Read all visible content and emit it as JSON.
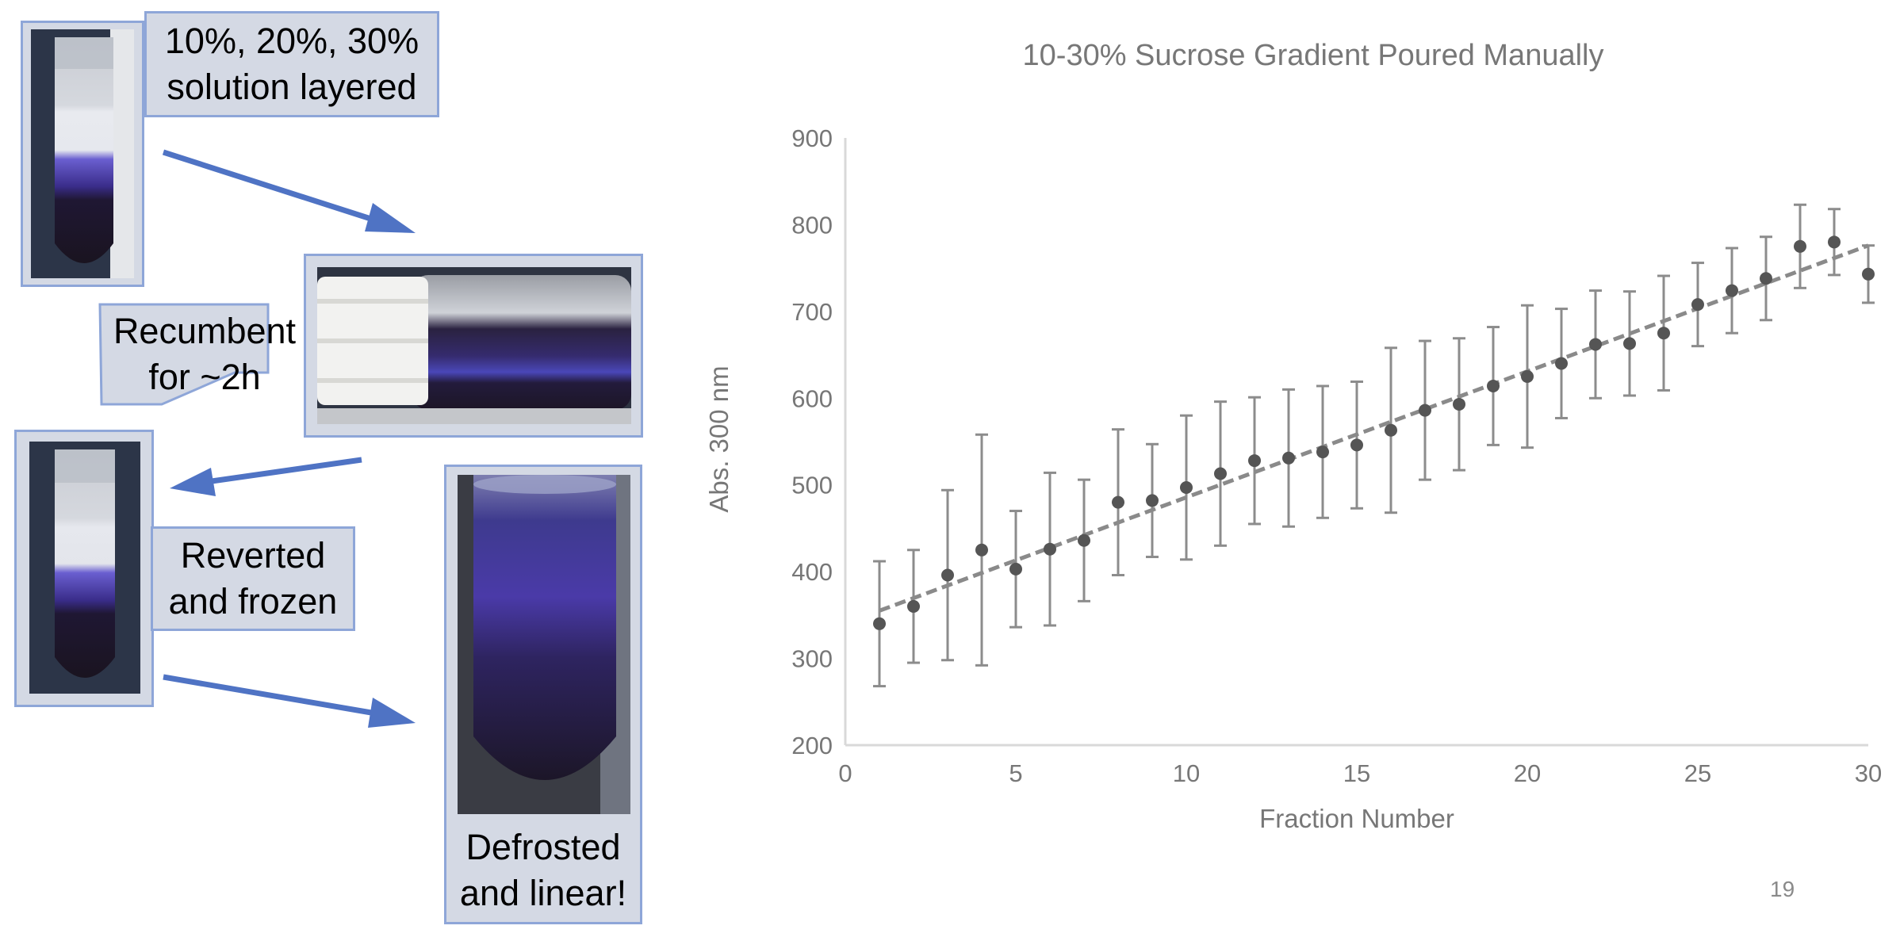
{
  "callouts": {
    "layered": [
      "10%, 20%, 30%",
      "solution layered"
    ],
    "recumbent": [
      "Recumbent",
      "for ~2h"
    ],
    "reverted": [
      "Reverted",
      "and frozen"
    ],
    "defrosted": [
      "Defrosted",
      "and linear!"
    ]
  },
  "colors": {
    "box_fill": "#d4d9e4",
    "box_border": "#8ea6d8",
    "arrow": "#4f73c4",
    "chart_points": "#555555",
    "chart_text": "#777777"
  },
  "chart_data": {
    "type": "scatter",
    "title": "10-30% Sucrose Gradient Poured Manually",
    "xlabel": "Fraction Number",
    "ylabel": "Abs. 300 nm",
    "xlim": [
      0,
      30
    ],
    "ylim": [
      200,
      900
    ],
    "xticks": [
      0,
      5,
      10,
      15,
      20,
      25,
      30
    ],
    "yticks": [
      200,
      300,
      400,
      500,
      600,
      700,
      800,
      900
    ],
    "grid": false,
    "legend": "none",
    "x": [
      1,
      2,
      3,
      4,
      5,
      6,
      7,
      8,
      9,
      10,
      11,
      12,
      13,
      14,
      15,
      16,
      17,
      18,
      19,
      20,
      21,
      22,
      23,
      24,
      25,
      26,
      27,
      28,
      29,
      30
    ],
    "y": [
      340,
      360,
      396,
      425,
      403,
      426,
      436,
      480,
      482,
      497,
      513,
      528,
      531,
      538,
      546,
      563,
      586,
      593,
      614,
      625,
      640,
      662,
      663,
      675,
      708,
      724,
      738,
      775,
      780,
      743
    ],
    "error": [
      72,
      65,
      98,
      133,
      67,
      88,
      70,
      84,
      65,
      83,
      83,
      73,
      79,
      76,
      73,
      95,
      80,
      76,
      68,
      82,
      63,
      62,
      60,
      66,
      48,
      49,
      48,
      48,
      38,
      33
    ],
    "trendline": {
      "style": "dashed",
      "x": [
        1,
        30
      ],
      "y": [
        355,
        776
      ]
    }
  },
  "page_number": "19"
}
